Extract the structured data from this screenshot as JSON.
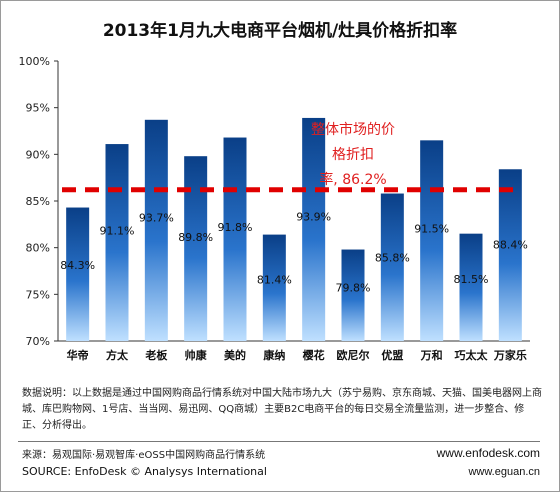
{
  "chart_data": {
    "type": "bar",
    "title": "2013年1月九大电商平台烟机/灶具价格折扣率",
    "categories": [
      "华帝",
      "方太",
      "老板",
      "帅康",
      "美的",
      "康纳",
      "樱花",
      "欧尼尔",
      "优盟",
      "万和",
      "巧太太",
      "万家乐"
    ],
    "values": [
      84.3,
      91.1,
      93.7,
      89.8,
      91.8,
      81.4,
      93.9,
      79.8,
      85.8,
      91.5,
      81.5,
      88.4
    ],
    "value_labels": [
      "84.3%",
      "91.1%",
      "93.7%",
      "89.8%",
      "91.8%",
      "81.4%",
      "93.9%",
      "79.8%",
      "85.8%",
      "91.5%",
      "81.5%",
      "88.4%"
    ],
    "ylim": [
      70,
      100
    ],
    "yticks": [
      70,
      75,
      80,
      85,
      90,
      95,
      100
    ],
    "ytick_labels": [
      "70%",
      "75%",
      "80%",
      "85%",
      "90%",
      "95%",
      "100%"
    ],
    "xlabel": "",
    "ylabel": "",
    "grid": false,
    "reference_line": {
      "value": 86.2,
      "style": "dashed",
      "color": "#e00000"
    },
    "annotation": [
      "整体市场的价",
      "格折扣",
      "率, 86.2%"
    ],
    "colors": {
      "bar_top": "#0a3f87",
      "bar_mid": "#2a74cc",
      "bar_bottom": "#bfe0ff",
      "reference": "#e00000",
      "annotation": "#e02020"
    }
  },
  "notes": "数据说明：以上数据是通过中国网购商品行情系统对中国大陆市场九大（苏宁易购、京东商城、天猫、国美电器网上商城、库巴购物网、1号店、当当网、易迅网、QQ商城）主要B2C电商平台的每日交易全流量监测，进一步整合、修正、分析得出。",
  "source_cn": "来源：易观国际·易观智库·eOSS中国网购商品行情系统",
  "source_en": "SOURCE: EnfoDesk © Analysys International",
  "website1": "www.enfodesk.com",
  "website2": "www.eguan.cn"
}
